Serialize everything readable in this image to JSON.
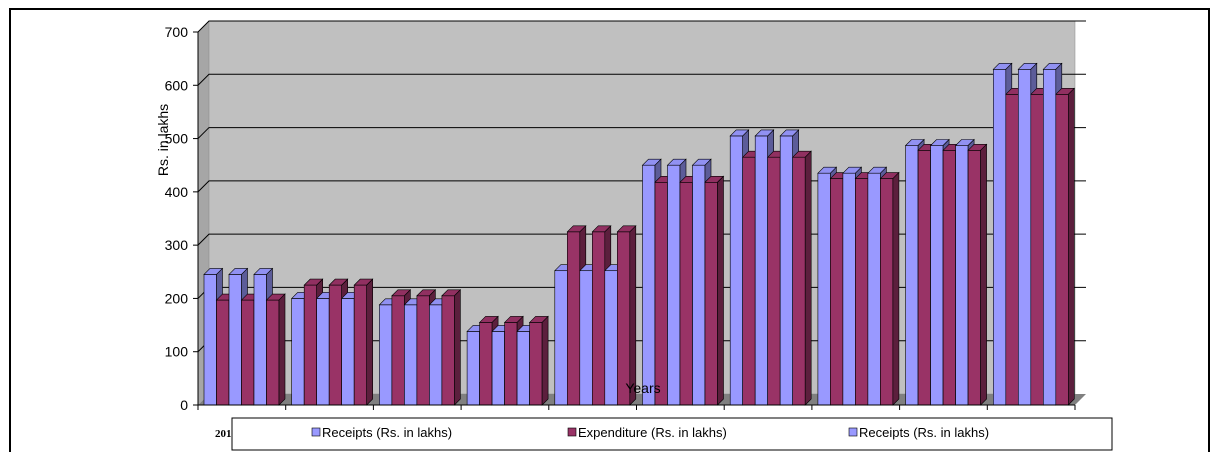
{
  "chart_data": {
    "type": "bar",
    "xlabel": "Years",
    "ylabel": "Rs. in lakhs",
    "ylim": [
      0,
      700
    ],
    "yticks": [
      0,
      100,
      200,
      300,
      400,
      500,
      600,
      700
    ],
    "grid": true,
    "legend_position": "bottom",
    "category_partial_label": "201",
    "category_count": 10,
    "series": [
      {
        "name": "Receipts (Rs. in lakhs)",
        "color": "#9999ff",
        "values": [
          245,
          200,
          188,
          138,
          252,
          450,
          505,
          435,
          487,
          630
        ]
      },
      {
        "name": "Expenditure (Rs. in lakhs)",
        "color": "#993366",
        "values": [
          197,
          225,
          205,
          155,
          325,
          418,
          465,
          425,
          478,
          583
        ]
      },
      {
        "name": "Receipts (Rs. in lakhs)",
        "color": "#9999ff",
        "values": [
          245,
          200,
          188,
          138,
          252,
          450,
          505,
          435,
          487,
          630
        ]
      }
    ]
  },
  "colors": {
    "plot_back": "#c0c0c0",
    "plot_wall_side": "#a6a6a6",
    "floor": "#808080"
  }
}
